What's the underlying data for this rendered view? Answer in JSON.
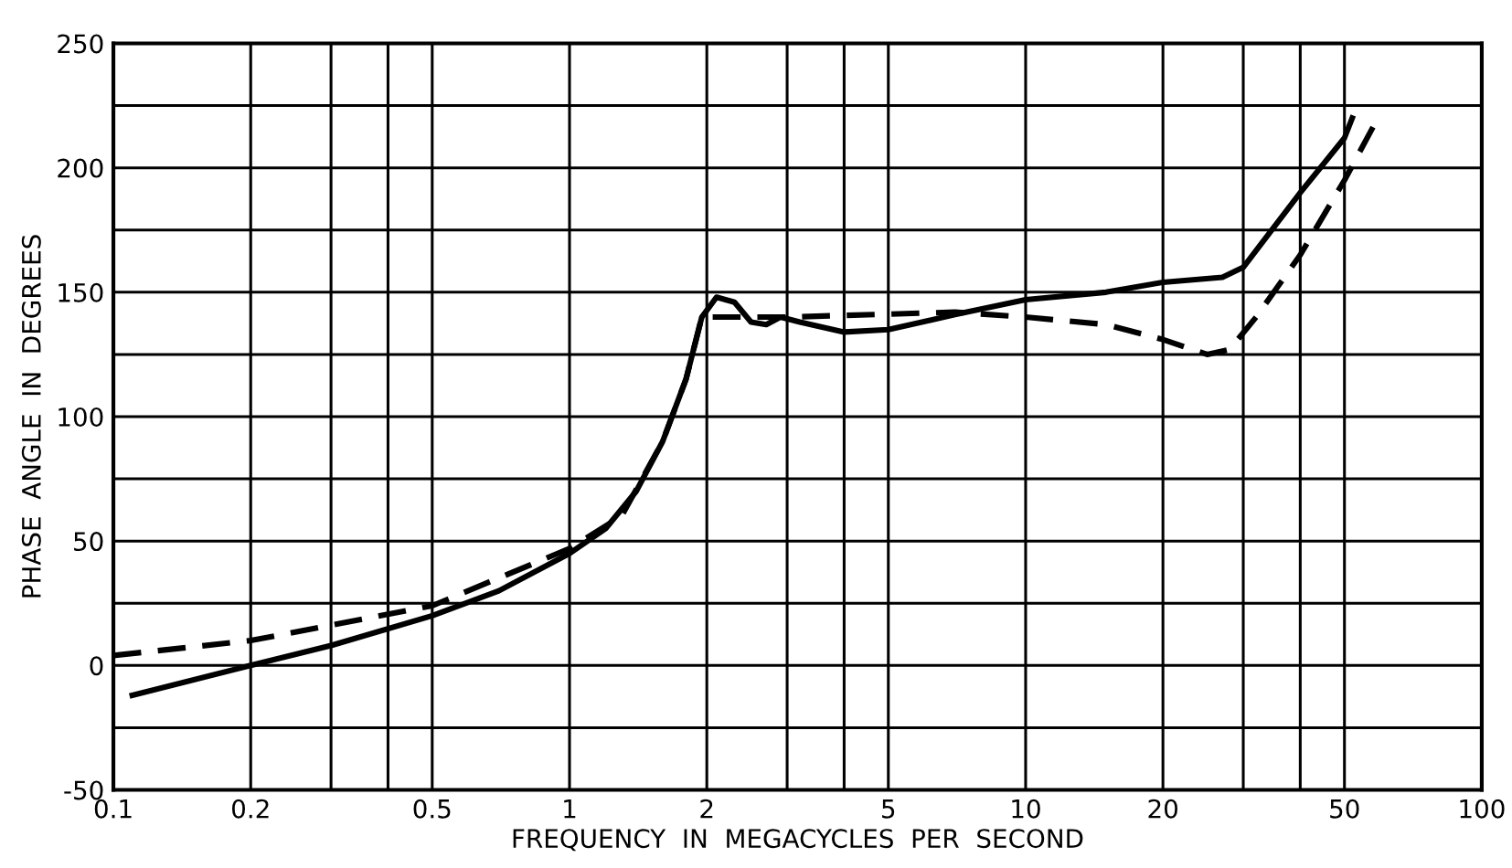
{
  "chart_data": {
    "type": "line",
    "xlabel": "FREQUENCY  IN  MEGACYCLES  PER  SECOND",
    "ylabel": "PHASE  ANGLE  IN  DEGREES",
    "log": "x",
    "grid": true,
    "marker": "none",
    "xlim": [
      0.1,
      100
    ],
    "ylim": [
      -50,
      250
    ],
    "xticks": [
      0.1,
      0.2,
      {
        "value": 0.3,
        "label": null
      },
      {
        "value": 0.4,
        "label": null
      },
      0.5,
      1,
      2,
      {
        "value": 3,
        "label": null
      },
      {
        "value": 4,
        "label": null
      },
      5,
      10,
      20,
      {
        "value": 30,
        "label": null
      },
      {
        "value": 40,
        "label": null
      },
      50,
      100
    ],
    "yticks": [
      -50,
      {
        "value": -25,
        "label": null
      },
      0,
      {
        "value": 25,
        "label": null
      },
      50,
      {
        "value": 75,
        "label": null
      },
      100,
      {
        "value": 125,
        "label": null
      },
      150,
      {
        "value": 175,
        "label": null
      },
      200,
      {
        "value": 225,
        "label": null
      },
      250
    ],
    "series": [
      {
        "color": "#000000",
        "line_style": "solid",
        "x": [
          0.11,
          0.2,
          0.3,
          0.5,
          0.7,
          1,
          1.2,
          1.4,
          1.6,
          1.8,
          1.95,
          2.1,
          2.3,
          2.5,
          2.7,
          2.9,
          3.2,
          4,
          5,
          7,
          10,
          15,
          20,
          27,
          30,
          40,
          50,
          52
        ],
        "values": [
          -12,
          0,
          8,
          20,
          30,
          45,
          55,
          70,
          90,
          115,
          140,
          148,
          146,
          138,
          137,
          140,
          138,
          134,
          135,
          141,
          147,
          150,
          154,
          156,
          160,
          190,
          212,
          220
        ]
      },
      {
        "color": "#000000",
        "line_style": "dashed",
        "x": [
          0.1,
          0.2,
          0.5,
          1,
          1.3,
          1.6,
          1.8,
          1.95,
          3,
          7,
          10,
          15,
          20,
          25,
          28,
          32,
          40,
          50,
          58
        ],
        "values": [
          4,
          10,
          24,
          47,
          60,
          90,
          115,
          140,
          140,
          142,
          140,
          137,
          131,
          125,
          127,
          140,
          165,
          195,
          217
        ]
      }
    ]
  }
}
